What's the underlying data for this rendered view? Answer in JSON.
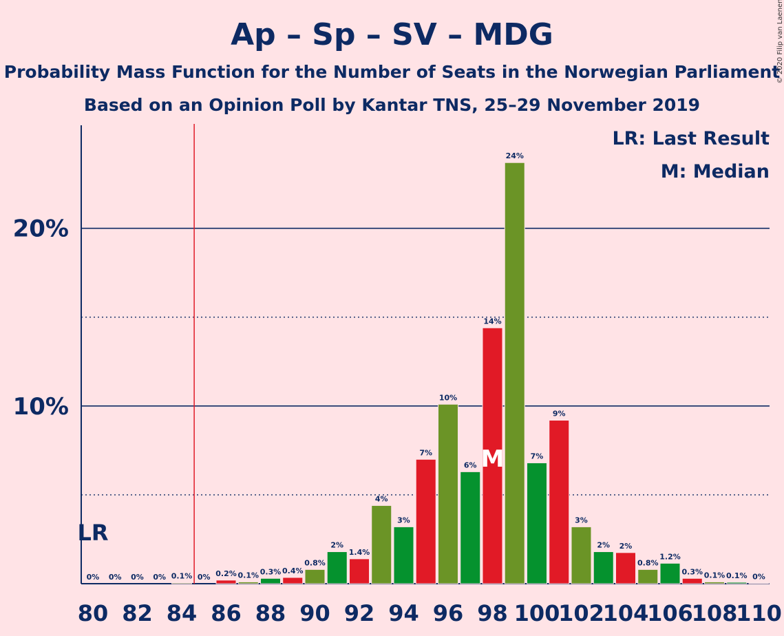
{
  "chart_data": {
    "type": "bar",
    "title": "Ap – Sp – SV – MDG",
    "subtitle_1": "Probability Mass Function for the Number of Seats in the Norwegian Parliament",
    "subtitle_2": "Based on an Opinion Poll by Kantar TNS, 25–29 November 2019",
    "legend": {
      "last_result": "LR: Last Result",
      "median": "M: Median"
    },
    "copyright": "© 2020 Filip van Laenen",
    "ylim": [
      0,
      25.8
    ],
    "yticks": [
      {
        "value": 10,
        "label": "10%"
      },
      {
        "value": 20,
        "label": "20%"
      }
    ],
    "dotted_gridlines": [
      5,
      15
    ],
    "xtick_labels": [
      "80",
      "82",
      "84",
      "86",
      "88",
      "90",
      "92",
      "94",
      "96",
      "98",
      "100",
      "102",
      "104",
      "106",
      "108",
      "110"
    ],
    "last_result_seat": 85,
    "last_result_label": "LR",
    "median_seat": 98,
    "median_label": "M",
    "seats": [
      80,
      81,
      82,
      83,
      84,
      85,
      86,
      87,
      88,
      89,
      90,
      91,
      92,
      93,
      94,
      95,
      96,
      97,
      98,
      99,
      100,
      101,
      102,
      103,
      104,
      105,
      106,
      107,
      108,
      109,
      110
    ],
    "values": [
      0,
      0,
      0,
      0,
      0.05,
      0,
      0.2,
      0.1,
      0.3,
      0.35,
      0.8,
      1.8,
      1.4,
      4.4,
      3.2,
      7.0,
      10.1,
      6.3,
      14.4,
      23.7,
      6.8,
      9.2,
      3.2,
      1.8,
      1.75,
      0.8,
      1.15,
      0.3,
      0.1,
      0.08,
      0.02
    ],
    "value_labels": [
      "0%",
      "0%",
      "0%",
      "0%",
      "0.1%",
      "0%",
      "0.2%",
      "0.1%",
      "0.3%",
      "0.4%",
      "0.8%",
      "2%",
      "1.4%",
      "4%",
      "3%",
      "7%",
      "10%",
      "6%",
      "14%",
      "24%",
      "7%",
      "9%",
      "3%",
      "2%",
      "2%",
      "0.8%",
      "1.2%",
      "0.3%",
      "0.1%",
      "0.1%",
      "0%"
    ],
    "colors": {
      "red": "#E11A26",
      "olive": "#6B9426",
      "green": "#05922E",
      "axis": "#0D2A63",
      "last_result_line": "#E11A26",
      "background": "#FFE3E6"
    },
    "bar_color_cycle": [
      "red",
      "olive",
      "green"
    ]
  }
}
